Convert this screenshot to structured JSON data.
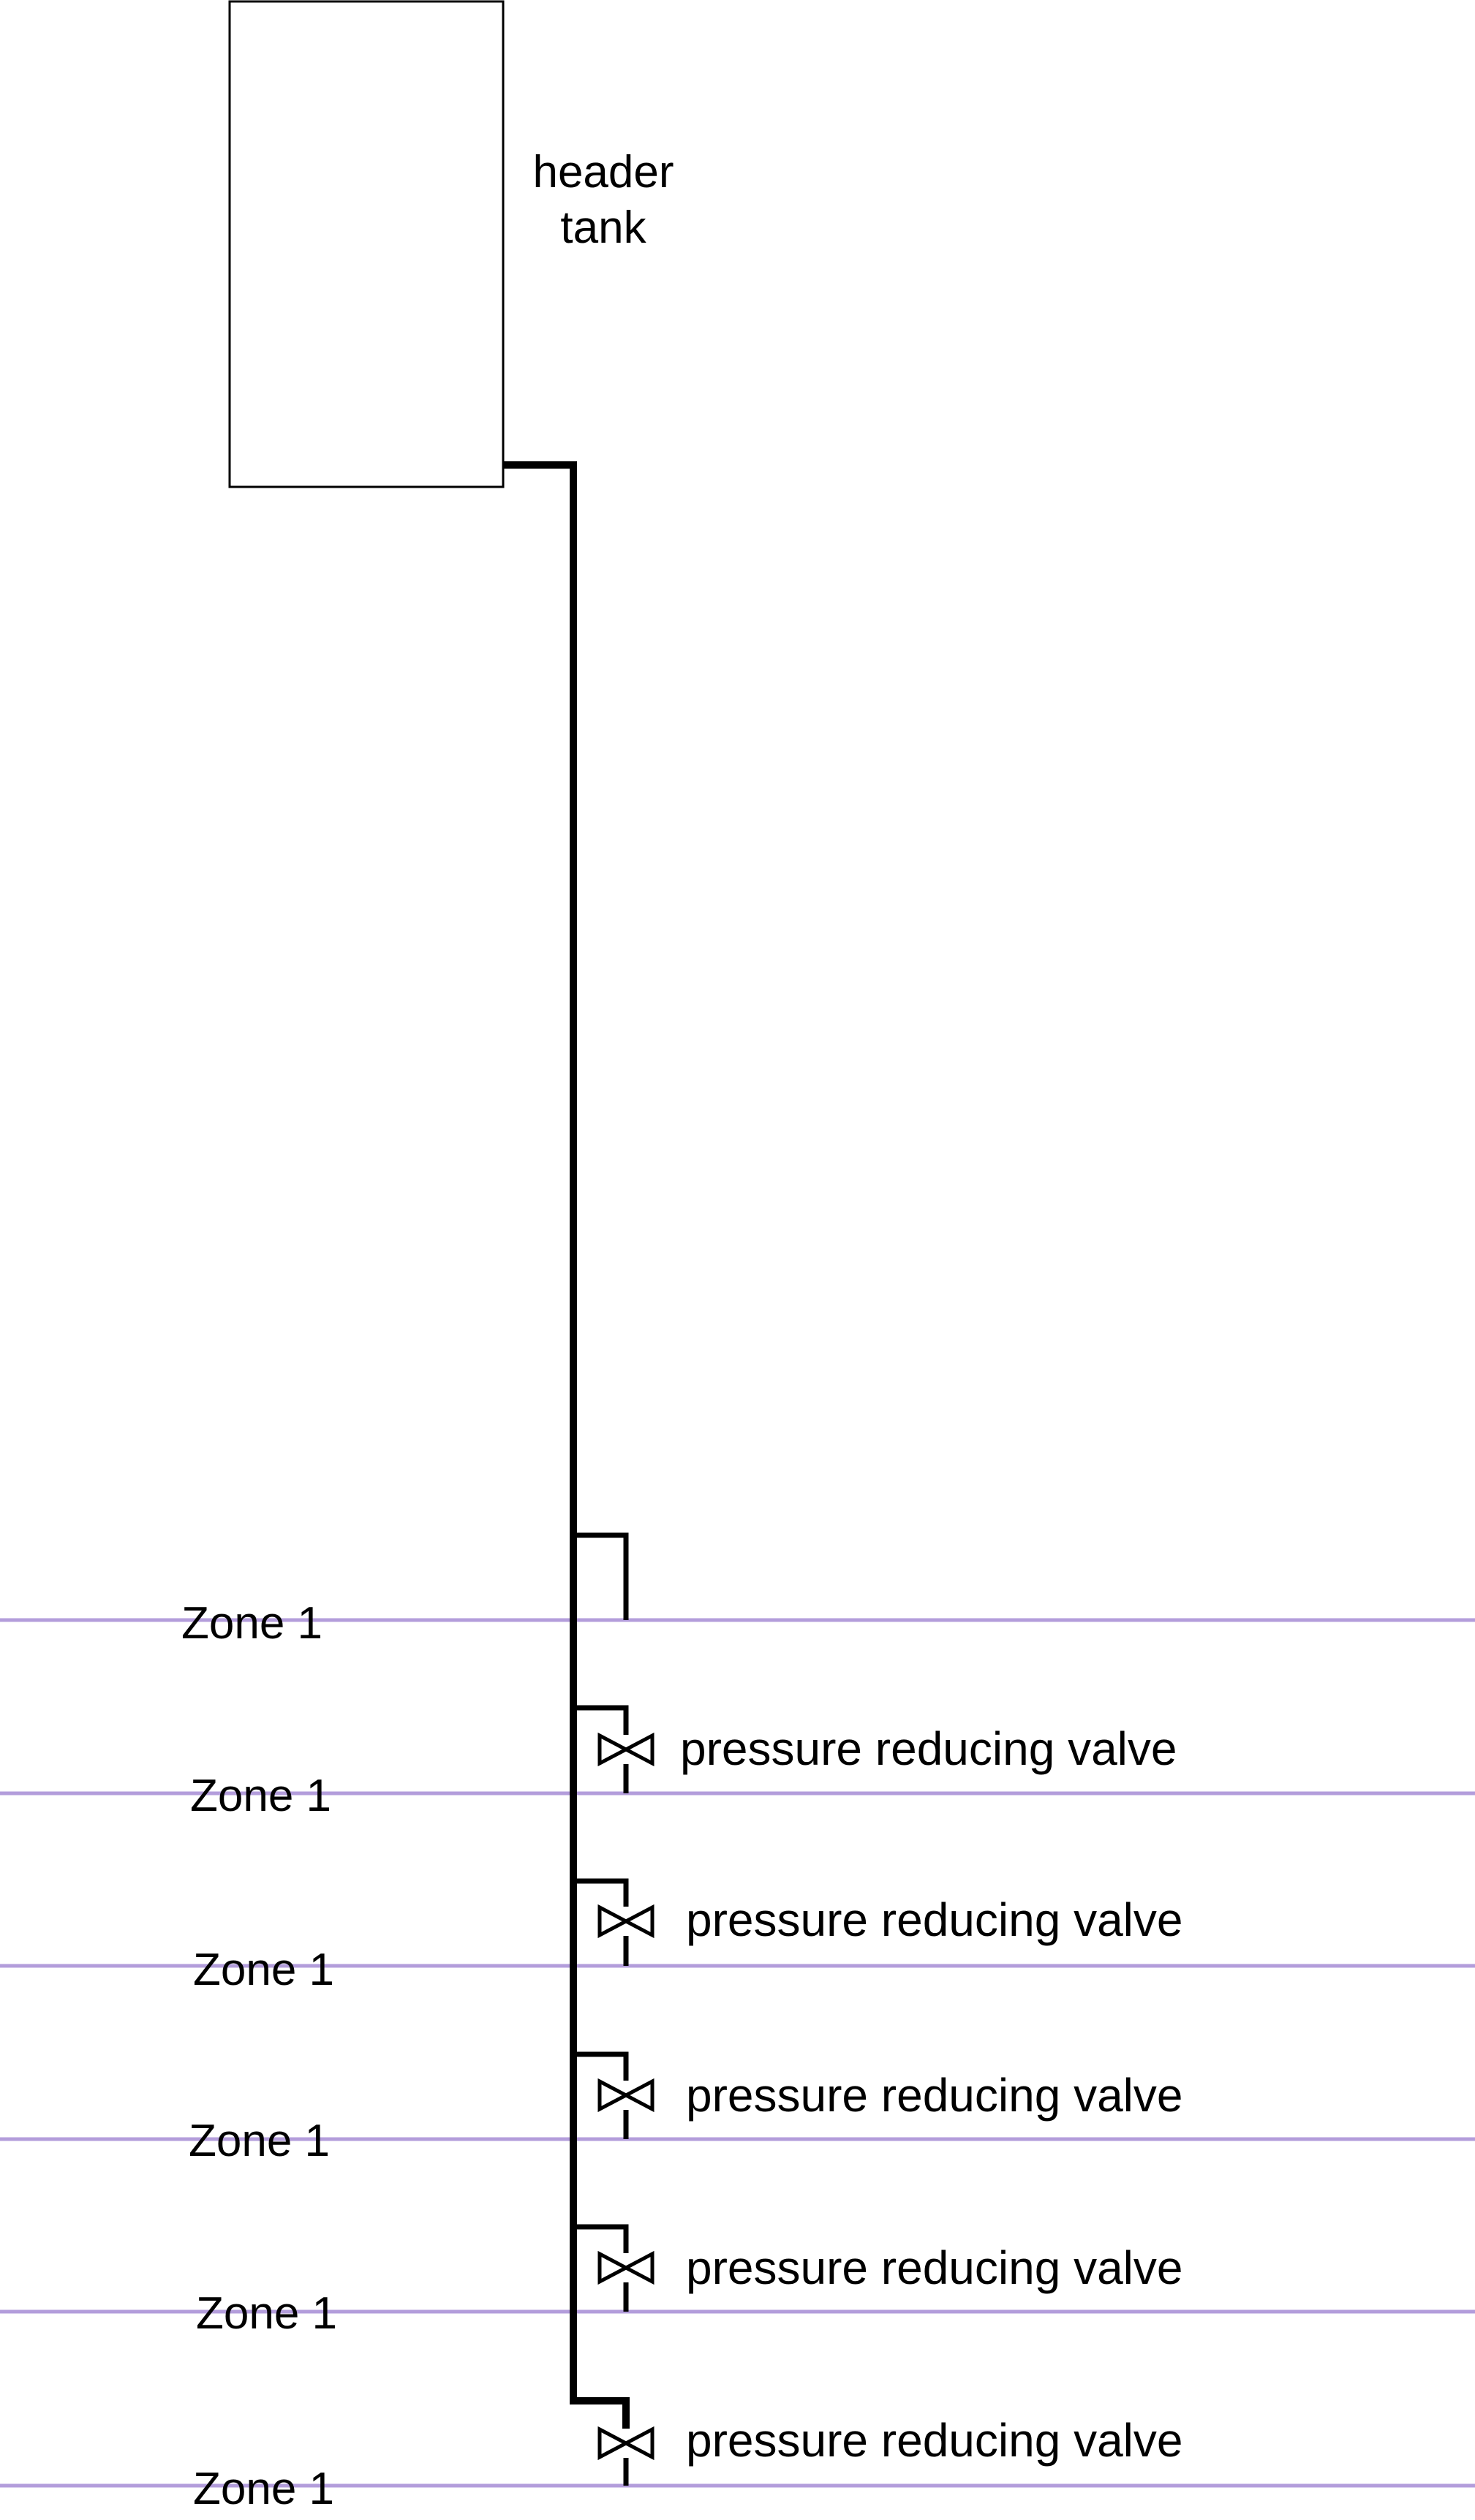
{
  "tank": {
    "label_line1": "header",
    "label_line2": "tank"
  },
  "zones": [
    {
      "label": "Zone 1"
    },
    {
      "label": "Zone 1"
    },
    {
      "label": "Zone 1"
    },
    {
      "label": "Zone 1"
    },
    {
      "label": "Zone 1"
    },
    {
      "label": "Zone 1"
    }
  ],
  "valves": [
    {
      "label": "pressure reducing valve"
    },
    {
      "label": "pressure reducing valve"
    },
    {
      "label": "pressure reducing valve"
    },
    {
      "label": "pressure reducing valve"
    },
    {
      "label": "pressure reducing valve"
    }
  ],
  "colors": {
    "floor_line": "#b39ddb",
    "pipe": "#000000"
  }
}
